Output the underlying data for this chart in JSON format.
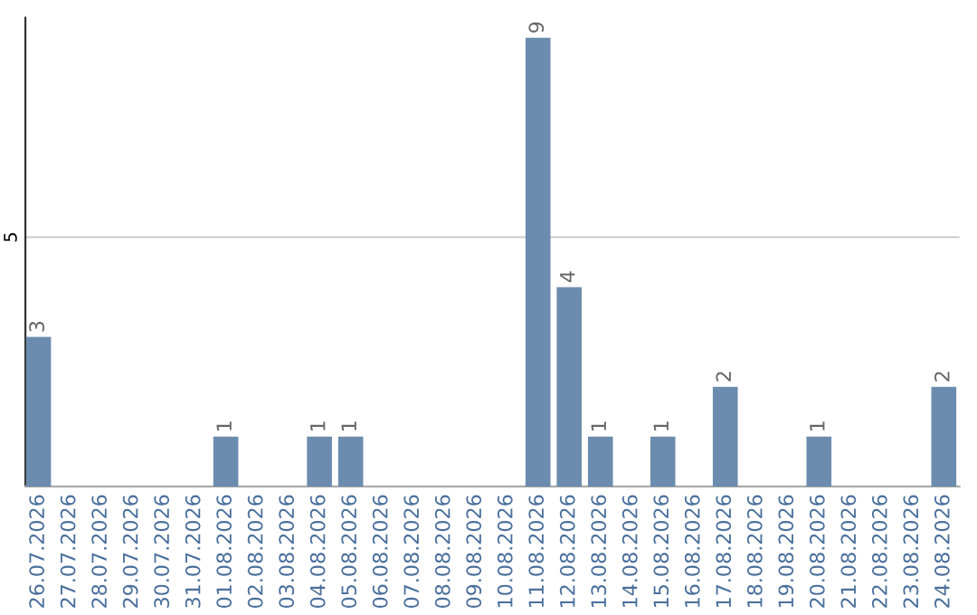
{
  "chart_data": {
    "type": "bar",
    "categories": [
      "26.07.2026",
      "27.07.2026",
      "28.07.2026",
      "29.07.2026",
      "30.07.2026",
      "31.07.2026",
      "01.08.2026",
      "02.08.2026",
      "03.08.2026",
      "04.08.2026",
      "05.08.2026",
      "06.08.2026",
      "07.08.2026",
      "08.08.2026",
      "09.08.2026",
      "10.08.2026",
      "11.08.2026",
      "12.08.2026",
      "13.08.2026",
      "14.08.2026",
      "15.08.2026",
      "16.08.2026",
      "17.08.2026",
      "18.08.2026",
      "19.08.2026",
      "20.08.2026",
      "21.08.2026",
      "22.08.2026",
      "23.08.2026",
      "24.08.2026"
    ],
    "values": [
      3,
      0,
      0,
      0,
      0,
      0,
      1,
      0,
      0,
      1,
      1,
      0,
      0,
      0,
      0,
      0,
      9,
      4,
      1,
      0,
      1,
      0,
      2,
      0,
      0,
      1,
      0,
      0,
      0,
      2
    ],
    "value_labels": [
      "3",
      null,
      null,
      null,
      null,
      null,
      "1",
      null,
      null,
      "1",
      "1",
      null,
      null,
      null,
      null,
      null,
      "9",
      "4",
      "1",
      null,
      "1",
      null,
      "2",
      null,
      null,
      "1",
      null,
      null,
      null,
      "2"
    ],
    "color": "#6b8cae",
    "ylim": [
      0,
      9.4
    ],
    "yticks": [
      5
    ],
    "grid": "y",
    "legend": false
  }
}
